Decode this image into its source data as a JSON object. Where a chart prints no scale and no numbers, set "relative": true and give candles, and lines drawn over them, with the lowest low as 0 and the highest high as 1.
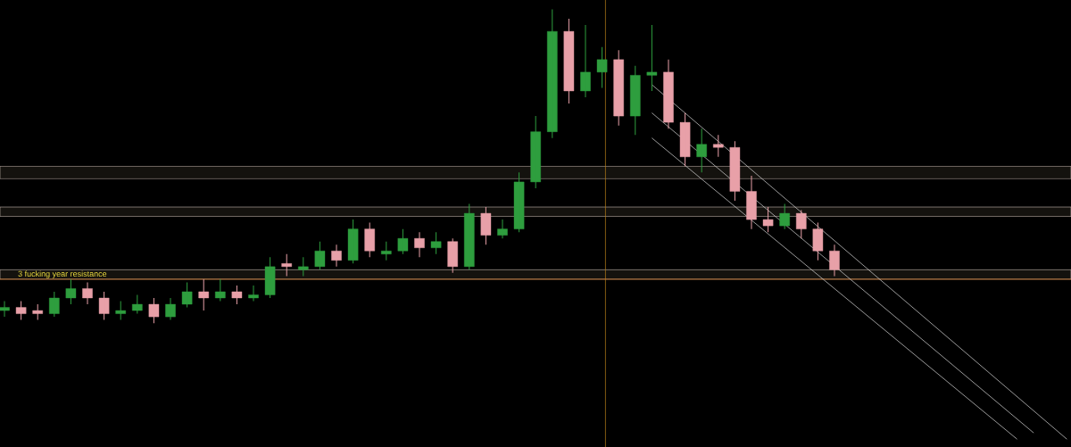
{
  "chart_data": {
    "type": "candlestick",
    "relative": true,
    "categories": [
      null,
      null,
      null,
      null,
      null,
      null,
      null,
      null,
      null,
      null,
      null,
      null,
      null,
      null,
      null,
      null,
      null,
      null,
      null,
      null,
      null,
      null,
      null,
      null,
      null,
      null,
      null,
      null,
      null,
      null,
      null,
      null,
      null,
      null,
      null,
      null,
      null,
      null,
      null,
      null,
      null,
      null,
      null,
      null,
      null,
      null,
      null,
      null,
      null,
      null,
      null,
      null,
      null,
      null,
      null,
      null,
      null,
      null,
      null,
      null,
      null,
      null,
      null,
      null,
      null
    ],
    "ohlc": [
      [
        0.04,
        0.07,
        0.02,
        0.05
      ],
      [
        0.05,
        0.07,
        0.01,
        0.03
      ],
      [
        0.04,
        0.06,
        0.01,
        0.03
      ],
      [
        0.03,
        0.1,
        0.02,
        0.08
      ],
      [
        0.08,
        0.14,
        0.06,
        0.11
      ],
      [
        0.11,
        0.13,
        0.06,
        0.08
      ],
      [
        0.08,
        0.1,
        0.01,
        0.03
      ],
      [
        0.03,
        0.07,
        0.01,
        0.04
      ],
      [
        0.04,
        0.09,
        0.03,
        0.06
      ],
      [
        0.06,
        0.08,
        0.0,
        0.02
      ],
      [
        0.02,
        0.08,
        0.01,
        0.06
      ],
      [
        0.06,
        0.13,
        0.05,
        0.1
      ],
      [
        0.1,
        0.14,
        0.04,
        0.08
      ],
      [
        0.08,
        0.14,
        0.07,
        0.1
      ],
      [
        0.1,
        0.12,
        0.06,
        0.08
      ],
      [
        0.08,
        0.12,
        0.07,
        0.09
      ],
      [
        0.09,
        0.21,
        0.08,
        0.18
      ],
      [
        0.19,
        0.22,
        0.15,
        0.18
      ],
      [
        0.17,
        0.21,
        0.15,
        0.18
      ],
      [
        0.18,
        0.26,
        0.17,
        0.23
      ],
      [
        0.23,
        0.25,
        0.18,
        0.2
      ],
      [
        0.2,
        0.33,
        0.19,
        0.3
      ],
      [
        0.3,
        0.32,
        0.21,
        0.23
      ],
      [
        0.22,
        0.26,
        0.2,
        0.23
      ],
      [
        0.23,
        0.3,
        0.22,
        0.27
      ],
      [
        0.27,
        0.29,
        0.21,
        0.24
      ],
      [
        0.24,
        0.29,
        0.22,
        0.26
      ],
      [
        0.26,
        0.27,
        0.16,
        0.18
      ],
      [
        0.18,
        0.38,
        0.17,
        0.35
      ],
      [
        0.35,
        0.37,
        0.25,
        0.28
      ],
      [
        0.28,
        0.33,
        0.27,
        0.3
      ],
      [
        0.3,
        0.48,
        0.29,
        0.45
      ],
      [
        0.45,
        0.66,
        0.43,
        0.61
      ],
      [
        0.61,
        1.0,
        0.59,
        0.93
      ],
      [
        0.93,
        0.97,
        0.7,
        0.74
      ],
      [
        0.74,
        0.95,
        0.72,
        0.8
      ],
      [
        0.8,
        0.88,
        0.75,
        0.84
      ],
      [
        0.84,
        0.87,
        0.63,
        0.66
      ],
      [
        0.66,
        0.82,
        0.6,
        0.79
      ],
      [
        0.79,
        0.95,
        0.74,
        0.8
      ],
      [
        0.8,
        0.84,
        0.62,
        0.64
      ],
      [
        0.64,
        0.67,
        0.5,
        0.53
      ],
      [
        0.53,
        0.62,
        0.48,
        0.57
      ],
      [
        0.57,
        0.6,
        0.53,
        0.56
      ],
      [
        0.56,
        0.58,
        0.39,
        0.42
      ],
      [
        0.42,
        0.47,
        0.3,
        0.33
      ],
      [
        0.33,
        0.37,
        0.29,
        0.31
      ],
      [
        0.31,
        0.38,
        0.3,
        0.35
      ],
      [
        0.35,
        0.36,
        0.27,
        0.3
      ],
      [
        0.3,
        0.32,
        0.2,
        0.23
      ],
      [
        0.23,
        0.25,
        0.15,
        0.17
      ],
      null,
      null,
      null,
      null,
      null,
      null,
      null,
      null,
      null,
      null,
      null,
      null,
      null,
      null
    ],
    "series": [
      {
        "type": "line",
        "color": "#d8d8d8",
        "values": [
          null,
          null,
          null,
          null,
          null,
          null,
          null,
          null,
          null,
          null,
          null,
          null,
          null,
          null,
          null,
          null,
          null,
          null,
          null,
          null,
          null,
          null,
          null,
          null,
          null,
          null,
          null,
          null,
          null,
          null,
          null,
          null,
          null,
          null,
          null,
          null,
          null,
          null,
          null,
          0.76,
          null,
          null,
          null,
          null,
          null,
          null,
          null,
          null,
          null,
          null,
          null,
          null,
          null,
          null,
          null,
          null,
          null,
          null,
          null,
          null,
          null,
          null,
          null,
          null,
          -0.37
        ]
      },
      {
        "type": "line",
        "color": "#d8d8d8",
        "values": [
          null,
          null,
          null,
          null,
          null,
          null,
          null,
          null,
          null,
          null,
          null,
          null,
          null,
          null,
          null,
          null,
          null,
          null,
          null,
          null,
          null,
          null,
          null,
          null,
          null,
          null,
          null,
          null,
          null,
          null,
          null,
          null,
          null,
          null,
          null,
          null,
          null,
          null,
          null,
          0.67,
          null,
          null,
          null,
          null,
          null,
          null,
          null,
          null,
          null,
          null,
          null,
          null,
          null,
          null,
          null,
          null,
          null,
          null,
          null,
          null,
          null,
          null,
          -0.35,
          null,
          null
        ]
      },
      {
        "type": "line",
        "color": "#d8d8d8",
        "values": [
          null,
          null,
          null,
          null,
          null,
          null,
          null,
          null,
          null,
          null,
          null,
          null,
          null,
          null,
          null,
          null,
          null,
          null,
          null,
          null,
          null,
          null,
          null,
          null,
          null,
          null,
          null,
          null,
          null,
          null,
          null,
          null,
          null,
          null,
          null,
          null,
          null,
          null,
          null,
          0.59,
          null,
          null,
          null,
          null,
          null,
          null,
          null,
          null,
          null,
          null,
          null,
          null,
          null,
          null,
          null,
          null,
          null,
          null,
          null,
          null,
          null,
          -0.37,
          null,
          null,
          null
        ]
      }
    ],
    "bands": [
      {
        "axis": "y",
        "from": 0.14,
        "to": 0.17,
        "label": "3 fucking year resistance"
      },
      {
        "axis": "y",
        "from": 0.34,
        "to": 0.37
      },
      {
        "axis": "y",
        "from": 0.46,
        "to": 0.5
      }
    ],
    "ref_lines": [
      {
        "axis": "y",
        "value": 0.14,
        "color": "#e07820"
      }
    ]
  }
}
